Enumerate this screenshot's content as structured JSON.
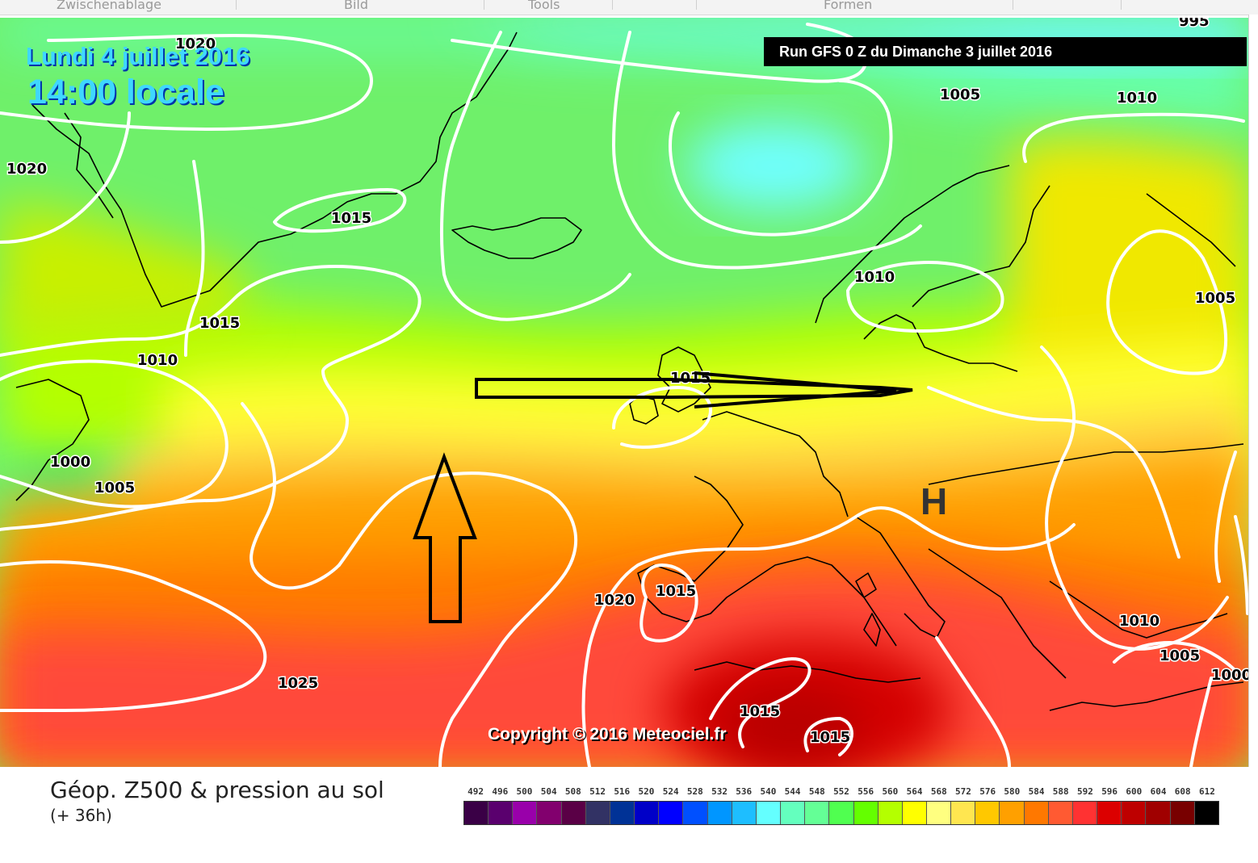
{
  "toolbar": {
    "items": [
      "Zwischenablage",
      "Bild",
      "Tools",
      "Formen"
    ]
  },
  "map": {
    "date": "Lundi 4 juillet 2016",
    "time": "14:00 locale",
    "run": "Run GFS 0 Z du Dimanche 3 juillet 2016",
    "copyright": "Copyright © 2016 Meteociel.fr",
    "high_marker": "H",
    "isobars": {
      "l1020a": "1020",
      "l1020b": "1020",
      "l1015a": "1015",
      "l1015b": "1015",
      "l1010a": "1010",
      "l1000a": "1000",
      "l1005a": "1005",
      "l1005b": "1005",
      "l1010b": "1010",
      "l1010c": "1010",
      "l1005c": "1005",
      "l1015c": "1015",
      "l1020c": "1020",
      "l1015d": "1015",
      "l1025a": "1025",
      "l1015e": "1015",
      "l1015f": "1015",
      "l1010d": "1010",
      "l1005d": "1005",
      "l1000b": "1000",
      "l995": "995"
    }
  },
  "legend": {
    "title": "Géop. Z500 & pression au sol",
    "subtitle": "(+ 36h)",
    "scale": [
      {
        "value": "492",
        "color": "#3a0046"
      },
      {
        "value": "496",
        "color": "#5a006e"
      },
      {
        "value": "500",
        "color": "#9900aa"
      },
      {
        "value": "504",
        "color": "#82006e"
      },
      {
        "value": "508",
        "color": "#5a0046"
      },
      {
        "value": "512",
        "color": "#323264"
      },
      {
        "value": "516",
        "color": "#003296"
      },
      {
        "value": "520",
        "color": "#0000c8"
      },
      {
        "value": "524",
        "color": "#0000ff"
      },
      {
        "value": "528",
        "color": "#0050ff"
      },
      {
        "value": "532",
        "color": "#0096ff"
      },
      {
        "value": "536",
        "color": "#1ebeff"
      },
      {
        "value": "540",
        "color": "#64ffff"
      },
      {
        "value": "544",
        "color": "#64ffbe"
      },
      {
        "value": "548",
        "color": "#64ff96"
      },
      {
        "value": "552",
        "color": "#50ff50"
      },
      {
        "value": "556",
        "color": "#64ff00"
      },
      {
        "value": "560",
        "color": "#b4ff00"
      },
      {
        "value": "564",
        "color": "#ffff00"
      },
      {
        "value": "568",
        "color": "#ffff80"
      },
      {
        "value": "572",
        "color": "#ffe650"
      },
      {
        "value": "576",
        "color": "#ffc800"
      },
      {
        "value": "580",
        "color": "#ffa000"
      },
      {
        "value": "584",
        "color": "#ff7800"
      },
      {
        "value": "588",
        "color": "#ff5a32"
      },
      {
        "value": "592",
        "color": "#ff3232"
      },
      {
        "value": "596",
        "color": "#dc0000"
      },
      {
        "value": "600",
        "color": "#be0000"
      },
      {
        "value": "604",
        "color": "#a00000"
      },
      {
        "value": "608",
        "color": "#780000"
      },
      {
        "value": "612",
        "color": "#000000"
      }
    ]
  }
}
